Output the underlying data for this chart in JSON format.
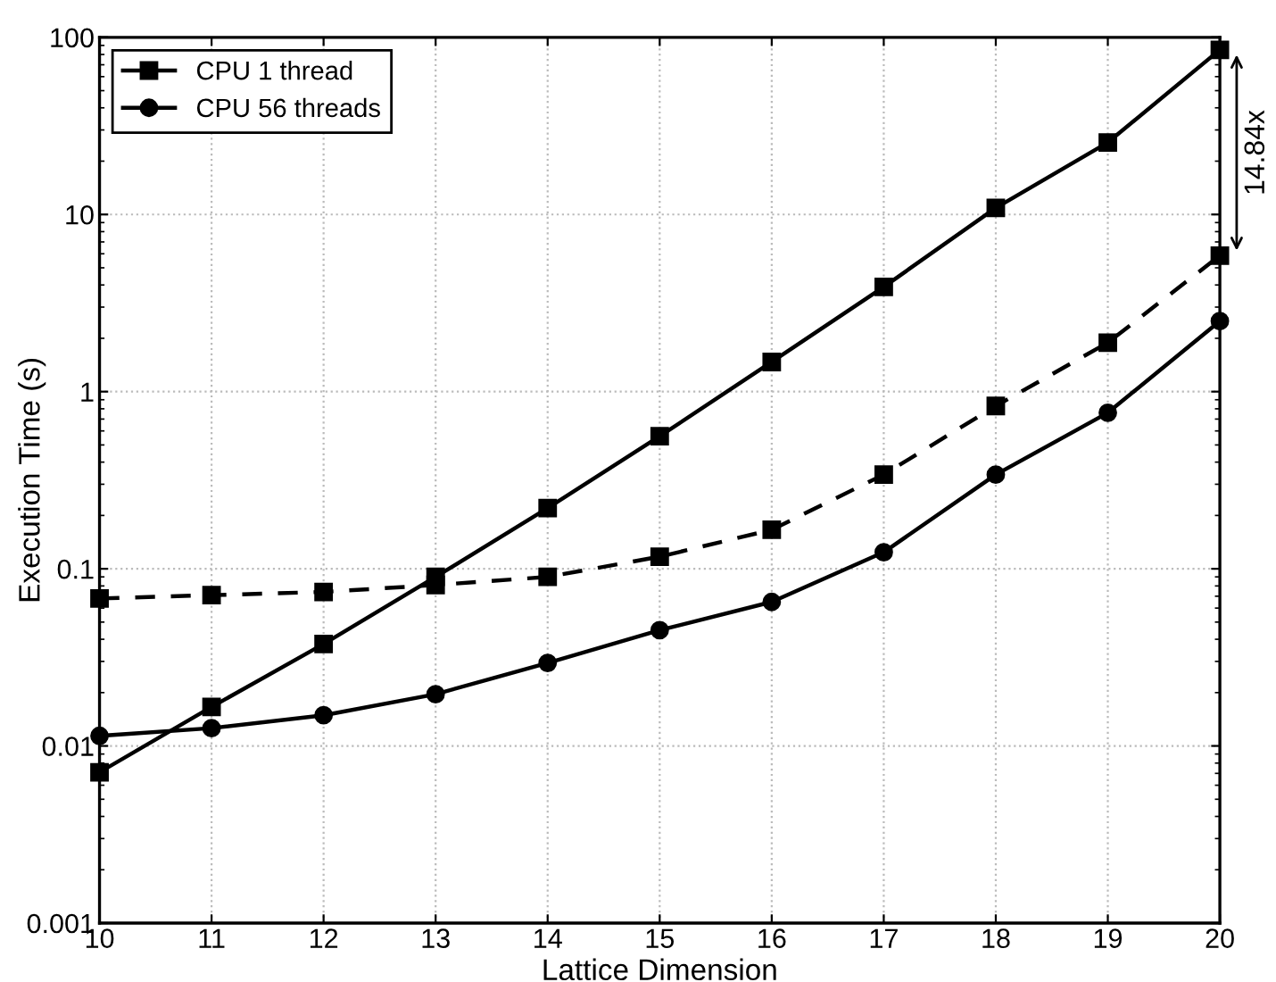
{
  "chart_data": {
    "type": "line",
    "xlabel": "Lattice Dimension",
    "ylabel": "Execution Time (s)",
    "x": [
      10,
      11,
      12,
      13,
      14,
      15,
      16,
      17,
      18,
      19,
      20
    ],
    "xlim": [
      10,
      20
    ],
    "xticks": [
      10,
      11,
      12,
      13,
      14,
      15,
      16,
      17,
      18,
      19,
      20
    ],
    "ylim": [
      0.001,
      100
    ],
    "yticks": [
      {
        "value": 0.001,
        "label": "0.001"
      },
      {
        "value": 0.01,
        "label": "0.01"
      },
      {
        "value": 0.1,
        "label": "0.1"
      },
      1,
      10,
      100
    ],
    "log": "y",
    "grid": true,
    "legend": "top left",
    "series": [
      {
        "name": "CPU 1 thread",
        "color": "#000000",
        "marker": "square",
        "line_style": "solid",
        "values": [
          0.0071,
          0.0166,
          0.0376,
          0.09,
          0.22,
          0.56,
          1.47,
          3.9,
          10.9,
          25.5,
          85
        ]
      },
      {
        "name": "CPU 56 threads",
        "color": "#000000",
        "marker": "circle",
        "line_style": "solid",
        "values": [
          0.0114,
          0.0126,
          0.0149,
          0.0196,
          0.0294,
          0.045,
          0.065,
          0.124,
          0.34,
          0.76,
          2.5
        ]
      },
      {
        "color": "#000000",
        "marker": "square",
        "line_style": "dashed",
        "values": [
          0.068,
          0.071,
          0.074,
          0.081,
          0.09,
          0.117,
          0.166,
          0.34,
          0.83,
          1.89,
          5.86
        ]
      }
    ],
    "annotations": [
      "14.84x"
    ]
  }
}
